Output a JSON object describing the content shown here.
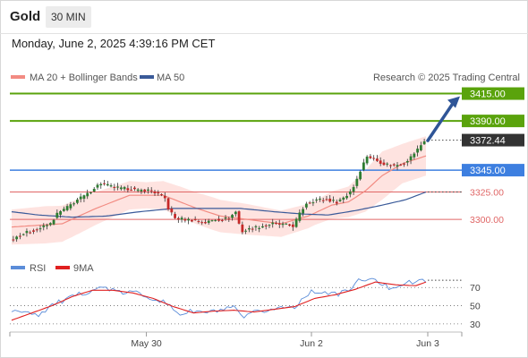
{
  "header": {
    "instrument": "Gold",
    "timeframe": "30 MIN"
  },
  "datetime": "Monday, June 2, 2025 4:39:16 PM CET",
  "legend": {
    "ma20": "MA 20 + Bollinger Bands",
    "ma50": "MA 50",
    "credit": "Research © 2025 Trading Central"
  },
  "indicator_legend": {
    "rsi": "RSI",
    "ma9": "9MA"
  },
  "colors": {
    "up_candle": "#2e7d32",
    "down_candle": "#c62828",
    "ma20": "#f28b82",
    "band_fill": "#fdd9d6",
    "ma50": "#3a5a99",
    "resistance": "#5aa30c",
    "pivot": "#3d7fe0",
    "support": "#e06666",
    "arrow": "#2f5597",
    "rsi": "#5b8dd9",
    "ma9": "#e02020",
    "price_tag": "#333333"
  },
  "chart_data": [
    {
      "type": "candlestick",
      "title": "Gold",
      "interval": "30 MIN",
      "x_tick_labels": [
        "May 30",
        "Jun 2",
        "Jun 3"
      ],
      "ylim": [
        3278,
        3422
      ],
      "last_price": "3372.44",
      "levels": [
        {
          "value": 3415.0,
          "label": "3415.00",
          "kind": "resistance",
          "tag": true
        },
        {
          "value": 3390.0,
          "label": "3390.00",
          "kind": "resistance",
          "tag": true
        },
        {
          "value": 3345.0,
          "label": "3345.00",
          "kind": "pivot",
          "tag": true
        },
        {
          "value": 3325.0,
          "label": "3325.00",
          "kind": "support",
          "tag": false
        },
        {
          "value": 3300.0,
          "label": "3300.00",
          "kind": "support",
          "tag": false
        }
      ],
      "arrow": {
        "from": 3372,
        "to": 3410,
        "direction": "up"
      },
      "series": [
        {
          "name": "MA 20 + Bollinger Bands",
          "kind": "ma20"
        },
        {
          "name": "MA 50",
          "kind": "ma50"
        }
      ],
      "close_path": [
        [
          0,
          3281
        ],
        [
          3,
          3286
        ],
        [
          6,
          3289
        ],
        [
          9,
          3292
        ],
        [
          12,
          3296
        ],
        [
          14,
          3305
        ],
        [
          17,
          3311
        ],
        [
          20,
          3318
        ],
        [
          23,
          3323
        ],
        [
          25,
          3329
        ],
        [
          27,
          3333
        ],
        [
          30,
          3330
        ],
        [
          33,
          3328
        ],
        [
          36,
          3328
        ],
        [
          38,
          3326
        ],
        [
          40,
          3327
        ],
        [
          42,
          3326
        ],
        [
          44,
          3323
        ],
        [
          46,
          3319
        ],
        [
          47,
          3310
        ],
        [
          49,
          3301
        ],
        [
          52,
          3300
        ],
        [
          55,
          3299
        ],
        [
          58,
          3297
        ],
        [
          61,
          3300
        ],
        [
          63,
          3300
        ],
        [
          65,
          3301
        ],
        [
          67,
          3307
        ],
        [
          68,
          3296
        ],
        [
          69,
          3289
        ],
        [
          72,
          3292
        ],
        [
          75,
          3294
        ],
        [
          78,
          3296
        ],
        [
          81,
          3295
        ],
        [
          84,
          3294
        ],
        [
          86,
          3305
        ],
        [
          88,
          3315
        ],
        [
          91,
          3318
        ],
        [
          94,
          3318
        ],
        [
          97,
          3316
        ],
        [
          100,
          3322
        ],
        [
          102,
          3330
        ],
        [
          104,
          3345
        ],
        [
          106,
          3358
        ],
        [
          108,
          3355
        ],
        [
          111,
          3351
        ],
        [
          114,
          3349
        ],
        [
          117,
          3352
        ],
        [
          119,
          3357
        ],
        [
          121,
          3364
        ],
        [
          123,
          3372
        ]
      ],
      "ma20_path": [
        [
          0,
          3293
        ],
        [
          15,
          3296
        ],
        [
          25,
          3310
        ],
        [
          35,
          3322
        ],
        [
          45,
          3322
        ],
        [
          55,
          3310
        ],
        [
          62,
          3303
        ],
        [
          70,
          3300
        ],
        [
          80,
          3296
        ],
        [
          88,
          3303
        ],
        [
          95,
          3313
        ],
        [
          100,
          3316
        ],
        [
          105,
          3326
        ],
        [
          110,
          3340
        ],
        [
          116,
          3351
        ],
        [
          123,
          3358
        ]
      ],
      "band_width": [
        [
          0,
          16
        ],
        [
          10,
          17
        ],
        [
          20,
          16
        ],
        [
          30,
          14
        ],
        [
          40,
          12
        ],
        [
          50,
          14
        ],
        [
          60,
          15
        ],
        [
          70,
          14
        ],
        [
          80,
          12
        ],
        [
          90,
          11
        ],
        [
          100,
          14
        ],
        [
          105,
          19
        ],
        [
          110,
          22
        ],
        [
          116,
          18
        ],
        [
          123,
          18
        ]
      ],
      "ma50_path": [
        [
          0,
          3307
        ],
        [
          8,
          3304
        ],
        [
          18,
          3302
        ],
        [
          28,
          3303
        ],
        [
          38,
          3307
        ],
        [
          48,
          3310
        ],
        [
          58,
          3310
        ],
        [
          68,
          3310
        ],
        [
          78,
          3307
        ],
        [
          86,
          3305
        ],
        [
          94,
          3304
        ],
        [
          102,
          3308
        ],
        [
          110,
          3313
        ],
        [
          117,
          3318
        ],
        [
          123,
          3325
        ]
      ]
    },
    {
      "type": "line",
      "title": "RSI",
      "ylim": [
        20,
        85
      ],
      "y_tick_labels": [
        "70",
        "50",
        "30"
      ],
      "y_ticks": [
        70,
        50,
        30
      ],
      "series": [
        {
          "name": "RSI",
          "kind": "rsi"
        },
        {
          "name": "9MA",
          "kind": "ma9"
        }
      ],
      "rsi_path": [
        [
          0,
          42
        ],
        [
          4,
          45
        ],
        [
          8,
          40
        ],
        [
          12,
          51
        ],
        [
          16,
          56
        ],
        [
          20,
          62
        ],
        [
          24,
          68
        ],
        [
          28,
          70
        ],
        [
          32,
          64
        ],
        [
          36,
          65
        ],
        [
          40,
          61
        ],
        [
          44,
          56
        ],
        [
          47,
          49
        ],
        [
          50,
          41
        ],
        [
          54,
          44
        ],
        [
          58,
          42
        ],
        [
          62,
          45
        ],
        [
          66,
          47
        ],
        [
          69,
          36
        ],
        [
          72,
          42
        ],
        [
          76,
          45
        ],
        [
          80,
          48
        ],
        [
          84,
          49
        ],
        [
          88,
          64
        ],
        [
          92,
          66
        ],
        [
          96,
          62
        ],
        [
          100,
          67
        ],
        [
          104,
          80
        ],
        [
          108,
          77
        ],
        [
          112,
          70
        ],
        [
          116,
          74
        ],
        [
          120,
          76
        ],
        [
          123,
          78
        ]
      ],
      "ma9_path": [
        [
          0,
          34
        ],
        [
          6,
          42
        ],
        [
          12,
          50
        ],
        [
          18,
          60
        ],
        [
          24,
          67
        ],
        [
          30,
          67
        ],
        [
          36,
          64
        ],
        [
          42,
          58
        ],
        [
          48,
          49
        ],
        [
          54,
          42
        ],
        [
          60,
          44
        ],
        [
          66,
          45
        ],
        [
          72,
          43
        ],
        [
          78,
          46
        ],
        [
          84,
          49
        ],
        [
          90,
          58
        ],
        [
          96,
          62
        ],
        [
          102,
          68
        ],
        [
          108,
          76
        ],
        [
          114,
          73
        ],
        [
          120,
          72
        ],
        [
          123,
          76
        ]
      ]
    }
  ]
}
